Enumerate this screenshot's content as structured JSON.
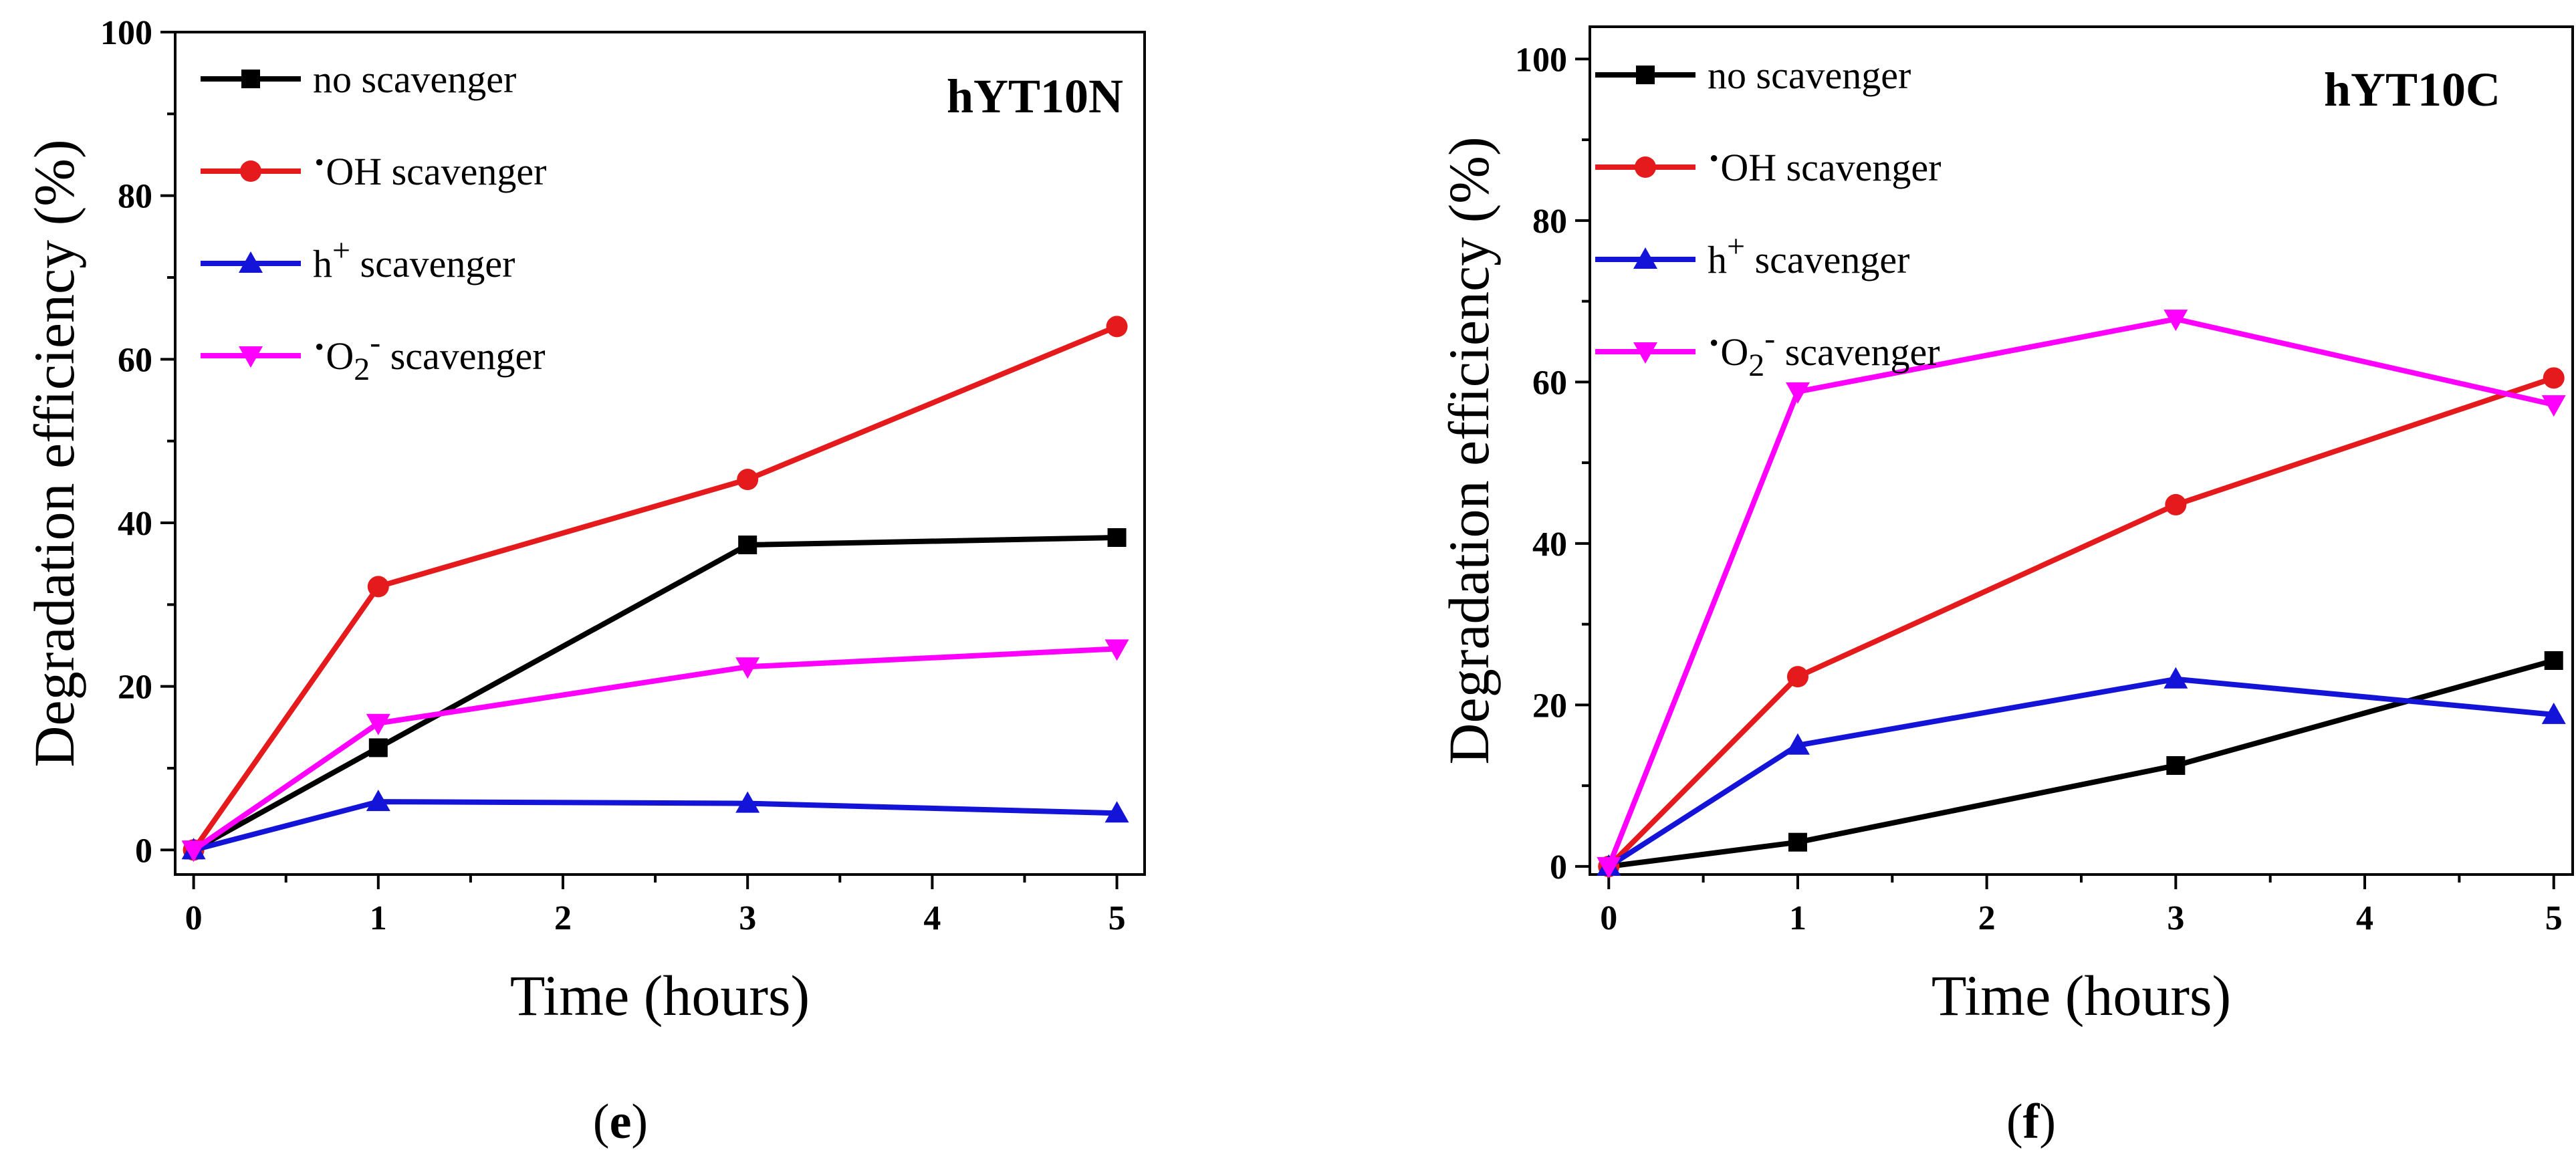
{
  "chart_data": [
    {
      "type": "line",
      "panel_label": "(e)",
      "panel_letter": "e",
      "title": "hYT10N",
      "xlabel": "Time (hours)",
      "ylabel": "Degradation efficiency (%)",
      "xlim": [
        -0.1,
        5.15
      ],
      "ylim": [
        -3,
        100
      ],
      "xticks": [
        0,
        1,
        2,
        3,
        4,
        5
      ],
      "yticks": [
        0,
        20,
        40,
        60,
        80,
        100
      ],
      "legend_position": "top-left",
      "series": [
        {
          "name": "no scavenger",
          "prefix": "",
          "main": "no scavenger",
          "sub": "",
          "sup": "",
          "rest": "",
          "color": "#000000",
          "marker": "square",
          "x": [
            0,
            1,
            3,
            5
          ],
          "values": [
            0,
            12.5,
            37.3,
            38.2
          ]
        },
        {
          "name": "·OH scavenger",
          "prefix": "·",
          "main": "OH scavenger",
          "sub": "",
          "sup": "",
          "rest": "",
          "color": "#e41a1c",
          "marker": "circle",
          "x": [
            0,
            1,
            3,
            5
          ],
          "values": [
            0,
            32.2,
            45.3,
            64.0
          ]
        },
        {
          "name": "h+ scavenger",
          "prefix": "",
          "main": "h",
          "sub": "",
          "sup": "+",
          "rest": " scavenger",
          "color": "#1414d8",
          "marker": "triangle-up",
          "x": [
            0,
            1,
            3,
            5
          ],
          "values": [
            0,
            5.9,
            5.7,
            4.5
          ]
        },
        {
          "name": "·O2- scavenger",
          "prefix": "·",
          "main": "O",
          "sub": "2",
          "sup": "-",
          "rest": " scavenger",
          "color": "#ff00ff",
          "marker": "triangle-down",
          "x": [
            0,
            1,
            3,
            5
          ],
          "values": [
            0,
            15.5,
            22.4,
            24.6
          ]
        }
      ]
    },
    {
      "type": "line",
      "panel_label": "(f)",
      "panel_letter": "f",
      "title": "hYT10C",
      "xlabel": "Time (hours)",
      "ylabel": "Degradation efficiency (%)",
      "xlim": [
        -0.1,
        5.1
      ],
      "ylim": [
        -1,
        104
      ],
      "xticks": [
        0,
        1,
        2,
        3,
        4,
        5
      ],
      "yticks": [
        0,
        20,
        40,
        60,
        80,
        100
      ],
      "legend_position": "top-left",
      "series": [
        {
          "name": "no scavenger",
          "prefix": "",
          "main": "no scavenger",
          "sub": "",
          "sup": "",
          "rest": "",
          "color": "#000000",
          "marker": "square",
          "x": [
            0,
            1,
            3,
            5
          ],
          "values": [
            0,
            3.0,
            12.5,
            25.5
          ]
        },
        {
          "name": "·OH scavenger",
          "prefix": "·",
          "main": "OH scavenger",
          "sub": "",
          "sup": "",
          "rest": "",
          "color": "#e41a1c",
          "marker": "circle",
          "x": [
            0,
            1,
            3,
            5
          ],
          "values": [
            0,
            23.5,
            44.8,
            60.5
          ]
        },
        {
          "name": "h+ scavenger",
          "prefix": "",
          "main": "h",
          "sub": "",
          "sup": "+",
          "rest": " scavenger",
          "color": "#1414d8",
          "marker": "triangle-up",
          "x": [
            0,
            1,
            3,
            5
          ],
          "values": [
            0,
            15.0,
            23.2,
            18.8
          ]
        },
        {
          "name": "·O2- scavenger",
          "prefix": "·",
          "main": "O",
          "sub": "2",
          "sup": "-",
          "rest": " scavenger",
          "color": "#ff00ff",
          "marker": "triangle-down",
          "x": [
            0,
            1,
            3,
            5
          ],
          "values": [
            0,
            58.8,
            67.8,
            57.2
          ]
        }
      ]
    }
  ]
}
